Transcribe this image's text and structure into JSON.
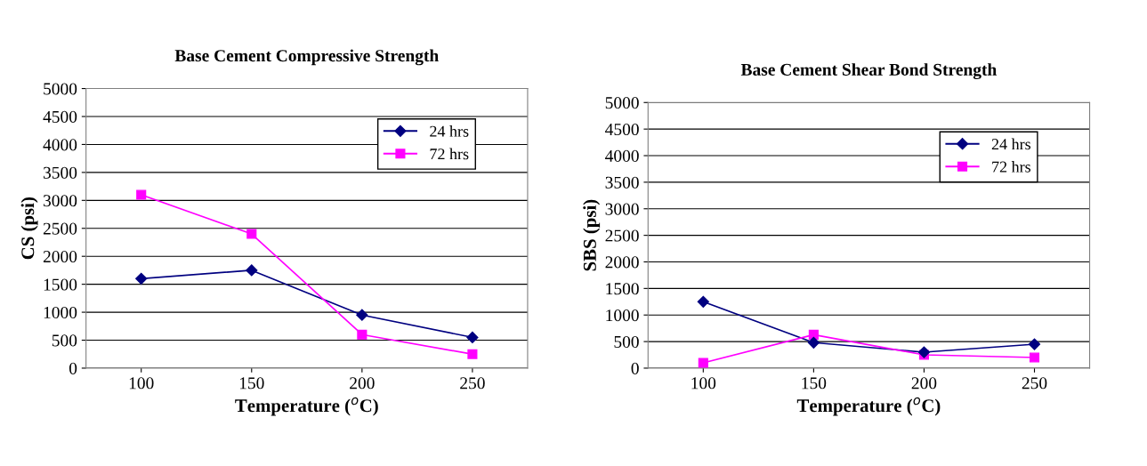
{
  "chart_data": [
    {
      "type": "line",
      "title": "Base Cement Compressive Strength",
      "xlabel": "Temperature ($^{o}$C)",
      "ylabel": "CS (psi)",
      "categories": [
        "100",
        "150",
        "200",
        "250"
      ],
      "series": [
        {
          "name": "24 hrs",
          "color": "#000080",
          "marker": "diamond",
          "values": [
            1600,
            1750,
            950,
            550
          ]
        },
        {
          "name": "72 hrs",
          "color": "#ff00ff",
          "marker": "square",
          "values": [
            3100,
            2400,
            600,
            250
          ]
        }
      ],
      "ylim": [
        0,
        5000
      ],
      "yticks": [
        0,
        500,
        1000,
        1500,
        2000,
        2500,
        3000,
        3500,
        4000,
        4500,
        5000
      ],
      "grid": "y",
      "legend": "top right"
    },
    {
      "type": "line",
      "title": "Base Cement Shear Bond Strength",
      "xlabel": "Temperature ($^{o}$C)",
      "ylabel": "SBS (psi)",
      "categories": [
        "100",
        "150",
        "200",
        "250"
      ],
      "series": [
        {
          "name": "24 hrs",
          "color": "#000080",
          "marker": "diamond",
          "values": [
            1250,
            480,
            300,
            450
          ]
        },
        {
          "name": "72 hrs",
          "color": "#ff00ff",
          "marker": "square",
          "values": [
            100,
            630,
            250,
            200
          ]
        }
      ],
      "ylim": [
        0,
        5000
      ],
      "yticks": [
        0,
        500,
        1000,
        1500,
        2000,
        2500,
        3000,
        3500,
        4000,
        4500,
        5000
      ],
      "grid": "y",
      "legend": "top right"
    }
  ]
}
